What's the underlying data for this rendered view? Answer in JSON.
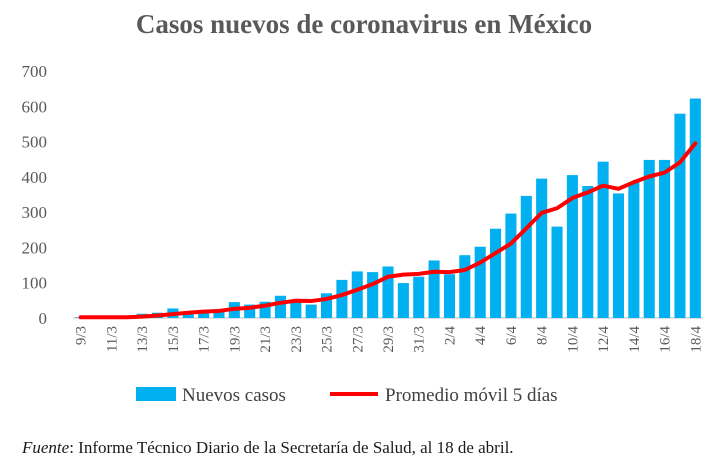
{
  "chart_data": {
    "type": "bar",
    "title": "Casos nuevos de coronavirus en México",
    "categories": [
      "9/3",
      "10/3",
      "11/3",
      "12/3",
      "13/3",
      "14/3",
      "15/3",
      "16/3",
      "17/3",
      "18/3",
      "19/3",
      "20/3",
      "21/3",
      "22/3",
      "23/3",
      "24/3",
      "25/3",
      "26/3",
      "27/3",
      "28/3",
      "29/3",
      "30/3",
      "31/3",
      "1/4",
      "2/4",
      "3/4",
      "4/4",
      "5/4",
      "6/4",
      "7/4",
      "8/4",
      "9/4",
      "10/4",
      "11/4",
      "12/4",
      "13/4",
      "14/4",
      "15/4",
      "16/4",
      "17/4",
      "18/4"
    ],
    "x_tick_labels": [
      "9/3",
      "11/3",
      "13/3",
      "15/3",
      "17/3",
      "19/3",
      "21/3",
      "23/3",
      "25/3",
      "27/3",
      "29/3",
      "31/3",
      "2/4",
      "4/4",
      "6/4",
      "8/4",
      "10/4",
      "12/4",
      "14/4",
      "16/4",
      "18/4"
    ],
    "series": [
      {
        "name": "Nuevos casos",
        "kind": "bar",
        "color": "#00b0f0",
        "values": [
          2,
          1,
          2,
          3,
          12,
          15,
          27,
          17,
          18,
          25,
          45,
          38,
          46,
          63,
          52,
          38,
          70,
          108,
          132,
          130,
          146,
          99,
          117,
          163,
          124,
          178,
          202,
          253,
          296,
          346,
          395,
          259,
          405,
          374,
          443,
          353,
          385,
          448,
          448,
          579,
          622
        ]
      },
      {
        "name": "Promedio móvil 5 días",
        "kind": "line",
        "color": "#ff0000",
        "values": [
          2,
          2,
          2,
          2,
          4,
          7,
          11,
          15,
          18,
          20,
          26,
          29,
          35,
          43,
          49,
          48,
          54,
          65,
          80,
          96,
          117,
          123,
          125,
          131,
          130,
          136,
          157,
          184,
          211,
          254,
          298,
          311,
          340,
          356,
          375,
          366,
          385,
          401,
          412,
          441,
          495
        ]
      }
    ],
    "ylim": [
      0,
      700
    ],
    "yticks": [
      0,
      100,
      200,
      300,
      400,
      500,
      600,
      700
    ],
    "grid": false,
    "legend": "bottom"
  },
  "source": {
    "label": "Fuente",
    "text": ": Informe Técnico Diario de la Secretaría de Salud, al 18 de abril."
  }
}
